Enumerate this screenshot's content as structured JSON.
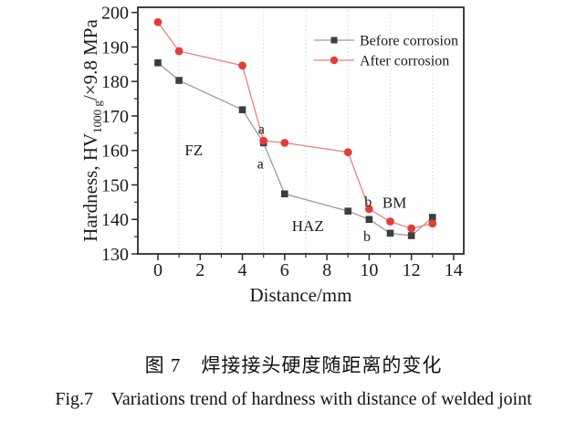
{
  "figure": {
    "caption_zh": "图 7　焊接接头硬度随距离的变化",
    "caption_en": "Fig.7    Variations trend of hardness with distance of welded joint"
  },
  "chart_data": {
    "type": "line",
    "title": "",
    "xlabel": "Distance/mm",
    "ylabel_parts": {
      "prefix": "Hardness, HV",
      "subscript": "1000 g",
      "suffix": "/×9.8 MPa"
    },
    "xlim": [
      -0.95,
      14.48
    ],
    "ylim": [
      130,
      201.5
    ],
    "x_major_ticks": [
      0,
      2,
      4,
      6,
      8,
      10,
      12,
      14
    ],
    "x_minor_ticks": [
      1,
      3,
      5,
      7,
      9,
      11,
      13
    ],
    "y_major_ticks": [
      130,
      140,
      150,
      160,
      170,
      180,
      190,
      200
    ],
    "y_minor_ticks": [
      135,
      145,
      155,
      165,
      175,
      185,
      195
    ],
    "grid": {
      "vertical_dotted_at": [
        1,
        3,
        5,
        7,
        9,
        11,
        13
      ],
      "color": "#c9c9c9",
      "horizontal": false
    },
    "frame_color": "#2b2b2b",
    "legend": {
      "position": "upper-right"
    },
    "series": [
      {
        "name": "Before corrosion",
        "marker": "square",
        "marker_color": "#3d3d3d",
        "line_color": "#9c9c9c",
        "x": [
          0,
          1,
          4,
          5,
          6,
          9,
          10,
          11,
          12,
          13
        ],
        "y": [
          185.4,
          180.3,
          171.8,
          162.2,
          147.4,
          142.4,
          140.0,
          136.0,
          135.3,
          140.6
        ]
      },
      {
        "name": "After corrosion",
        "marker": "circle",
        "marker_color": "#e23c3a",
        "line_color": "#e9807e",
        "x": [
          0,
          1,
          4,
          5,
          6,
          9,
          10,
          11,
          12,
          13
        ],
        "y": [
          197.2,
          188.8,
          184.6,
          162.8,
          162.2,
          159.5,
          143.0,
          139.4,
          137.4,
          138.8
        ]
      }
    ],
    "annotations": [
      {
        "id": "fz",
        "text": "FZ",
        "x": 1.7,
        "y": 160.2,
        "size": 17
      },
      {
        "id": "haz",
        "text": "HAZ",
        "x": 7.1,
        "y": 138.2,
        "size": 17
      },
      {
        "id": "bm",
        "text": "BM",
        "x": 11.2,
        "y": 145.0,
        "size": 17
      },
      {
        "id": "a-upper",
        "text": "a",
        "x": 4.9,
        "y": 166.3,
        "size": 16
      },
      {
        "id": "a-lower",
        "text": "a",
        "x": 4.85,
        "y": 156.2,
        "size": 16
      },
      {
        "id": "b-upper",
        "text": "b",
        "x": 9.95,
        "y": 145.2,
        "size": 16
      },
      {
        "id": "b-lower",
        "text": "b",
        "x": 9.9,
        "y": 135.2,
        "size": 16
      }
    ]
  }
}
